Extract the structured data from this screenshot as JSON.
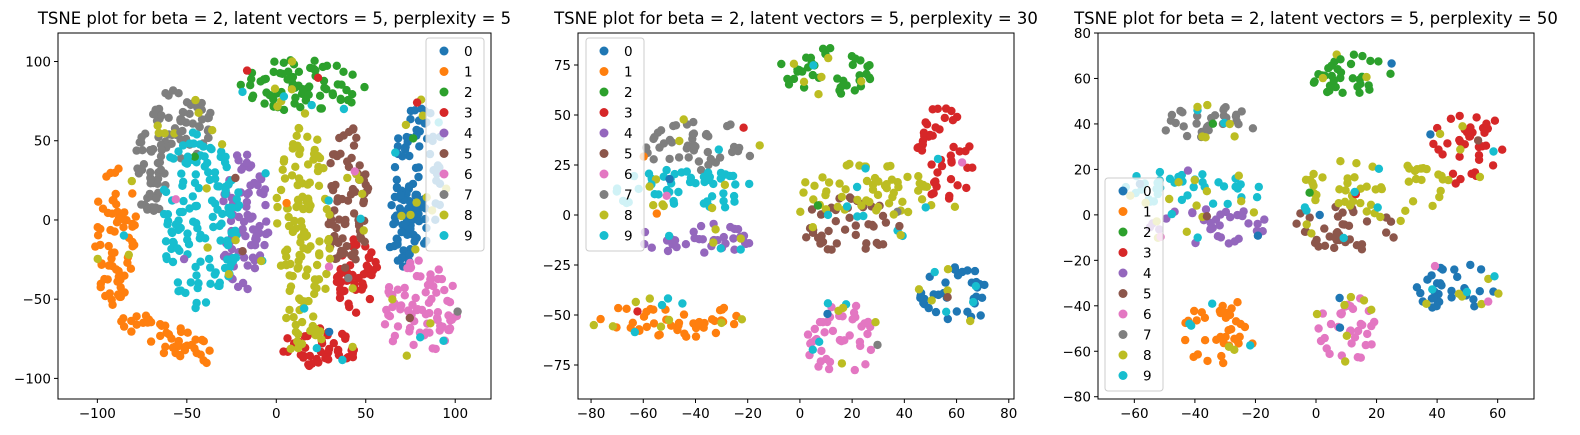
{
  "palette": {
    "0": "#1f77b4",
    "1": "#ff7f0e",
    "2": "#2ca02c",
    "3": "#d62728",
    "4": "#9467bd",
    "5": "#8c564b",
    "6": "#e377c2",
    "7": "#7f7f7f",
    "8": "#bcbd22",
    "9": "#17becf"
  },
  "chart_data": [
    {
      "type": "scatter",
      "title": "TSNE plot for beta = 2, latent vectors = 5, perplexity = 5",
      "xlabel": "",
      "ylabel": "",
      "xlim": [
        -122,
        120
      ],
      "ylim": [
        -113,
        118
      ],
      "xticks": [
        -100,
        -50,
        0,
        50,
        100
      ],
      "yticks": [
        -100,
        -50,
        0,
        50,
        100
      ],
      "legend": {
        "position": "upper right",
        "labels": [
          "0",
          "1",
          "2",
          "3",
          "4",
          "5",
          "6",
          "7",
          "8",
          "9"
        ]
      },
      "grid": false,
      "clusters": [
        {
          "label": "0",
          "arcs": [
            {
              "cx": 80,
              "cy": 30,
              "rx": 14,
              "ry": 45,
              "rot": 0
            },
            {
              "cx": 73,
              "cy": -5,
              "rx": 11,
              "ry": 25,
              "rot": 0
            }
          ]
        },
        {
          "label": "1",
          "arcs": [
            {
              "cx": -90,
              "cy": -10,
              "rx": 12,
              "ry": 45,
              "rot": 0
            },
            {
              "cx": -60,
              "cy": -75,
              "rx": 30,
              "ry": 10,
              "rot": -25
            }
          ]
        },
        {
          "label": "2",
          "arcs": [
            {
              "cx": 15,
              "cy": 85,
              "rx": 35,
              "ry": 17,
              "rot": 0
            }
          ]
        },
        {
          "label": "3",
          "arcs": [
            {
              "cx": 25,
              "cy": -80,
              "rx": 22,
              "ry": 13,
              "rot": 0
            },
            {
              "cx": 45,
              "cy": -35,
              "rx": 12,
              "ry": 25,
              "rot": 0
            }
          ]
        },
        {
          "label": "4",
          "arcs": [
            {
              "cx": -18,
              "cy": 0,
              "rx": 14,
              "ry": 45,
              "rot": 0
            }
          ]
        },
        {
          "label": "5",
          "arcs": [
            {
              "cx": 40,
              "cy": 10,
              "rx": 12,
              "ry": 50,
              "rot": 0
            }
          ]
        },
        {
          "label": "6",
          "arcs": [
            {
              "cx": 80,
              "cy": -55,
              "rx": 22,
              "ry": 30,
              "rot": 0
            }
          ]
        },
        {
          "label": "7",
          "arcs": [
            {
              "cx": -55,
              "cy": 60,
              "rx": 20,
              "ry": 22,
              "rot": 0
            },
            {
              "cx": -70,
              "cy": 30,
              "rx": 10,
              "ry": 28,
              "rot": 0
            }
          ]
        },
        {
          "label": "8",
          "arcs": [
            {
              "cx": 15,
              "cy": -10,
              "rx": 16,
              "ry": 70,
              "rot": 0
            }
          ]
        },
        {
          "label": "9",
          "arcs": [
            {
              "cx": -42,
              "cy": 0,
              "rx": 22,
              "ry": 58,
              "rot": 0
            }
          ]
        }
      ]
    },
    {
      "type": "scatter",
      "title": "TSNE plot for beta = 2, latent vectors = 5, perplexity = 30",
      "xlabel": "",
      "ylabel": "",
      "xlim": [
        -85,
        82
      ],
      "ylim": [
        -92,
        91
      ],
      "xticks": [
        -80,
        -60,
        -40,
        -20,
        0,
        20,
        40,
        60,
        80
      ],
      "yticks": [
        -75,
        -50,
        -25,
        0,
        25,
        50,
        75
      ],
      "legend": {
        "position": "upper left",
        "labels": [
          "0",
          "1",
          "2",
          "3",
          "4",
          "5",
          "6",
          "7",
          "8",
          "9"
        ]
      },
      "grid": false,
      "clusters": [
        {
          "label": "0",
          "arcs": [
            {
              "cx": 60,
              "cy": -40,
              "rx": 14,
              "ry": 14,
              "rot": 0
            }
          ]
        },
        {
          "label": "1",
          "arcs": [
            {
              "cx": -50,
              "cy": -52,
              "rx": 28,
              "ry": 10,
              "rot": 0
            }
          ]
        },
        {
          "label": "2",
          "arcs": [
            {
              "cx": 10,
              "cy": 72,
              "rx": 18,
              "ry": 13,
              "rot": 0
            }
          ]
        },
        {
          "label": "3",
          "arcs": [
            {
              "cx": 55,
              "cy": 30,
              "rx": 12,
              "ry": 25,
              "rot": 0
            }
          ]
        },
        {
          "label": "4",
          "arcs": [
            {
              "cx": -40,
              "cy": -12,
              "rx": 22,
              "ry": 8,
              "rot": 0
            }
          ]
        },
        {
          "label": "5",
          "arcs": [
            {
              "cx": 20,
              "cy": -5,
              "rx": 20,
              "ry": 14,
              "rot": 0
            }
          ]
        },
        {
          "label": "6",
          "arcs": [
            {
              "cx": 16,
              "cy": -62,
              "rx": 14,
              "ry": 18,
              "rot": 0
            }
          ]
        },
        {
          "label": "7",
          "arcs": [
            {
              "cx": -38,
              "cy": 35,
              "rx": 22,
              "ry": 13,
              "rot": 0
            }
          ]
        },
        {
          "label": "8",
          "arcs": [
            {
              "cx": 25,
              "cy": 12,
              "rx": 25,
              "ry": 14,
              "rot": 0
            }
          ]
        },
        {
          "label": "9",
          "arcs": [
            {
              "cx": -45,
              "cy": 12,
              "rx": 28,
              "ry": 11,
              "rot": 0
            }
          ]
        }
      ]
    },
    {
      "type": "scatter",
      "title": "TSNE plot for beta = 2, latent vectors = 5, perplexity = 50",
      "xlabel": "",
      "ylabel": "",
      "xlim": [
        -72,
        72
      ],
      "ylim": [
        -81,
        80
      ],
      "xticks": [
        -60,
        -40,
        -20,
        0,
        20,
        40,
        60
      ],
      "yticks": [
        -80,
        -60,
        -40,
        -20,
        0,
        20,
        40,
        60,
        80
      ],
      "legend": {
        "position": "lower left",
        "labels": [
          "0",
          "1",
          "2",
          "3",
          "4",
          "5",
          "6",
          "7",
          "8",
          "9"
        ]
      },
      "grid": false,
      "clusters": [
        {
          "label": "0",
          "arcs": [
            {
              "cx": 46,
              "cy": -32,
              "rx": 14,
              "ry": 11,
              "rot": 0
            }
          ]
        },
        {
          "label": "1",
          "arcs": [
            {
              "cx": -32,
              "cy": -52,
              "rx": 12,
              "ry": 16,
              "rot": 0
            }
          ]
        },
        {
          "label": "2",
          "arcs": [
            {
              "cx": 10,
              "cy": 62,
              "rx": 15,
              "ry": 10,
              "rot": 0
            }
          ]
        },
        {
          "label": "3",
          "arcs": [
            {
              "cx": 50,
              "cy": 30,
              "rx": 12,
              "ry": 18,
              "rot": 0
            }
          ]
        },
        {
          "label": "4",
          "arcs": [
            {
              "cx": -35,
              "cy": -5,
              "rx": 20,
              "ry": 8,
              "rot": 0
            }
          ]
        },
        {
          "label": "5",
          "arcs": [
            {
              "cx": 10,
              "cy": -5,
              "rx": 18,
              "ry": 11,
              "rot": 0
            }
          ]
        },
        {
          "label": "6",
          "arcs": [
            {
              "cx": 10,
              "cy": -50,
              "rx": 10,
              "ry": 15,
              "rot": 0
            }
          ]
        },
        {
          "label": "7",
          "arcs": [
            {
              "cx": -35,
              "cy": 40,
              "rx": 16,
              "ry": 8,
              "rot": 0
            }
          ]
        },
        {
          "label": "8",
          "arcs": [
            {
              "cx": 20,
              "cy": 12,
              "rx": 25,
              "ry": 12,
              "rot": 0
            }
          ]
        },
        {
          "label": "9",
          "arcs": [
            {
              "cx": -40,
              "cy": 12,
              "rx": 25,
              "ry": 8,
              "rot": 0
            }
          ]
        }
      ]
    }
  ]
}
